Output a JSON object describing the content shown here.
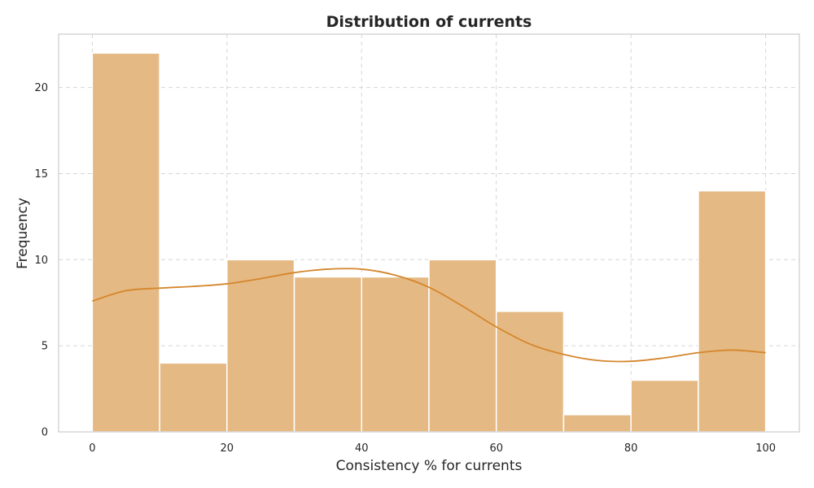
{
  "chart_data": {
    "type": "bar",
    "subtype": "histogram-with-kde",
    "title": "Distribution of currents",
    "xlabel": "Consistency % for currents",
    "ylabel": "Frequency",
    "xlim": [
      -5,
      105
    ],
    "ylim": [
      0,
      23.1
    ],
    "xticks": [
      0,
      20,
      40,
      60,
      80,
      100
    ],
    "yticks": [
      0,
      5,
      10,
      15,
      20
    ],
    "grid": true,
    "bins": [
      {
        "from": 0,
        "to": 10,
        "count": 22
      },
      {
        "from": 10,
        "to": 20,
        "count": 4
      },
      {
        "from": 20,
        "to": 30,
        "count": 10
      },
      {
        "from": 30,
        "to": 40,
        "count": 9
      },
      {
        "from": 40,
        "to": 50,
        "count": 9
      },
      {
        "from": 50,
        "to": 60,
        "count": 10
      },
      {
        "from": 60,
        "to": 70,
        "count": 7
      },
      {
        "from": 70,
        "to": 80,
        "count": 1
      },
      {
        "from": 80,
        "to": 90,
        "count": 3
      },
      {
        "from": 90,
        "to": 100,
        "count": 14
      }
    ],
    "kde": {
      "x": [
        0,
        5,
        10,
        15,
        20,
        25,
        30,
        35,
        40,
        45,
        50,
        55,
        60,
        65,
        70,
        75,
        80,
        85,
        90,
        95,
        100
      ],
      "y": [
        7.6,
        8.2,
        8.35,
        8.45,
        8.6,
        8.9,
        9.25,
        9.45,
        9.45,
        9.1,
        8.4,
        7.3,
        6.1,
        5.1,
        4.5,
        4.15,
        4.1,
        4.3,
        4.6,
        4.75,
        4.6
      ]
    },
    "colors": {
      "bar": "#e5b983",
      "kde": "#d4862c"
    }
  }
}
